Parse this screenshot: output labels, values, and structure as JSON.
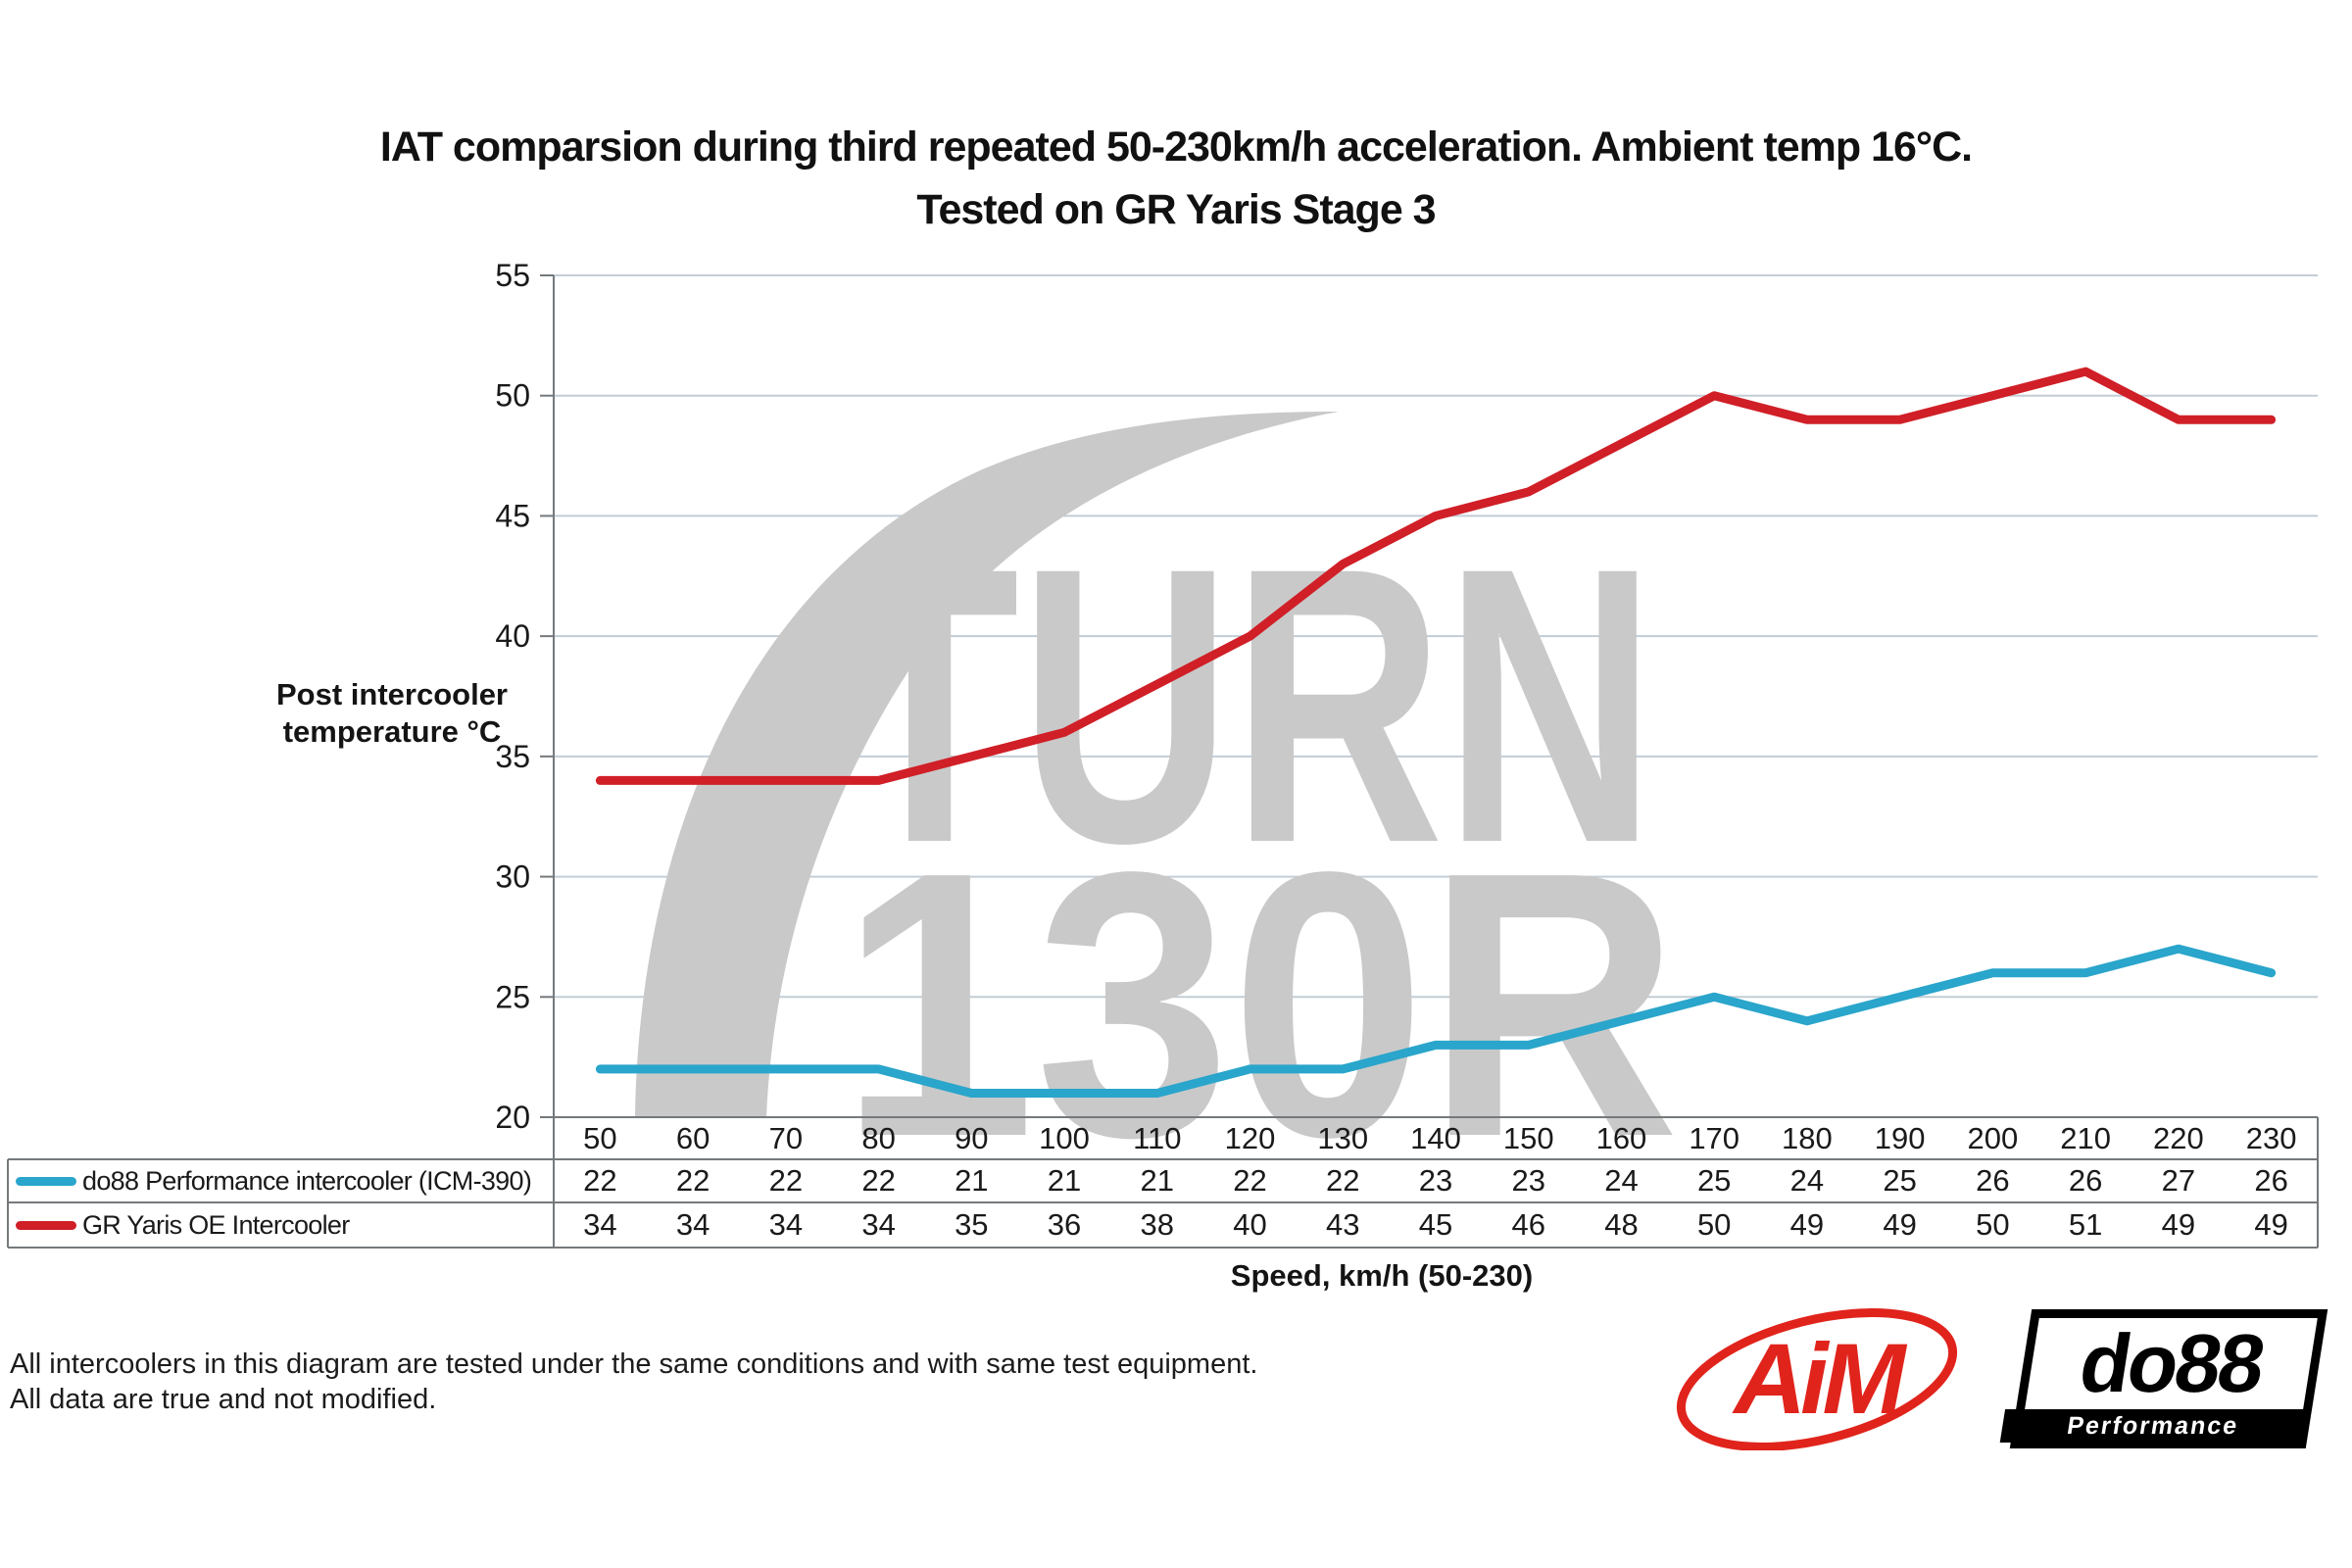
{
  "title": {
    "line1": "IAT comparsion during third repeated 50-230km/h acceleration. Ambient temp 16°C.",
    "line2": "Tested on GR Yaris Stage 3"
  },
  "chart_data": {
    "type": "line",
    "x": [
      50,
      60,
      70,
      80,
      90,
      100,
      110,
      120,
      130,
      140,
      150,
      160,
      170,
      180,
      190,
      200,
      210,
      220,
      230
    ],
    "series": [
      {
        "name": "do88 Performance intercooler (ICM-390)",
        "color": "#2AA5CB",
        "values": [
          22,
          22,
          22,
          22,
          21,
          21,
          21,
          22,
          22,
          23,
          23,
          24,
          25,
          24,
          25,
          26,
          26,
          27,
          26
        ]
      },
      {
        "name": "GR Yaris OE Intercooler",
        "color": "#D01F27",
        "values": [
          34,
          34,
          34,
          34,
          35,
          36,
          38,
          40,
          43,
          45,
          46,
          48,
          50,
          49,
          49,
          50,
          51,
          49,
          49
        ]
      }
    ],
    "ylabel": "Post intercooler temperature °C",
    "xlabel": "Speed, km/h (50-230)",
    "ylim": [
      20,
      55
    ],
    "yticks": [
      55,
      50,
      45,
      40,
      35,
      30,
      25,
      20
    ],
    "grid": "horizontal",
    "legend_position": "table-left"
  },
  "axis": {
    "y_title_line1": "Post intercooler",
    "y_title_line2": "temperature °C",
    "x_title": "Speed, km/h (50-230)"
  },
  "watermark": {
    "line1": "TURN",
    "line2": "130R",
    "color": "#C9C9C9"
  },
  "footer": {
    "line1": "All intercoolers in this diagram are tested under the same conditions and with same test equipment.",
    "line2": "All data are true and not modified."
  },
  "logos": {
    "aim": {
      "text": "AiM",
      "color": "#E0241C"
    },
    "do88": {
      "text": "do88",
      "subtext": "Performance",
      "color": "#000000"
    }
  },
  "colors": {
    "background": "#FFFFFF",
    "gridline": "#C3CDD6",
    "axis": "#75797C",
    "text": "#1A1A1A",
    "watermark": "#C9C9C9"
  }
}
